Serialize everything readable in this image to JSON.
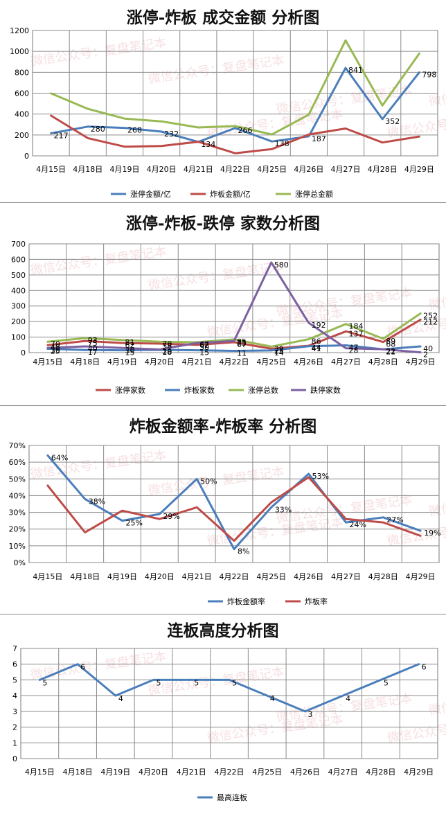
{
  "watermark": "微信公众号：复盘笔记本",
  "charts": [
    {
      "type": "line",
      "title": "涨停-炸板 成交金额 分析图",
      "categories": [
        "4月15日",
        "4月18日",
        "4月19日",
        "4月20日",
        "4月21日",
        "4月22日",
        "4月25日",
        "4月26日",
        "4月27日",
        "4月28日",
        "4月29日"
      ],
      "ylim": [
        0,
        1200
      ],
      "yticks": [
        0,
        200,
        400,
        600,
        800,
        1000,
        1200
      ],
      "ytick_labels": [
        "0",
        "200",
        "400",
        "600",
        "800",
        "1000",
        "1200"
      ],
      "grid": true,
      "legend_position": "bottom",
      "series": [
        {
          "name": "涨停金额/亿",
          "color": "#4a7ebb",
          "values": [
            217,
            280,
            268,
            232,
            134,
            266,
            138,
            187,
            841,
            352,
            798
          ],
          "labels": [
            "217",
            "280",
            "268",
            "232",
            "134",
            "266",
            "138",
            "187",
            "841",
            "352",
            "798"
          ]
        },
        {
          "name": "炸板金额/亿",
          "color": "#be4b48",
          "values": [
            385,
            170,
            88,
            95,
            135,
            25,
            65,
            205,
            262,
            128,
            185
          ]
        },
        {
          "name": "涨停总金额",
          "color": "#98b954",
          "values": [
            598,
            450,
            357,
            330,
            272,
            285,
            205,
            395,
            1105,
            482,
            980
          ]
        }
      ]
    },
    {
      "type": "line",
      "title": "涨停-炸板-跌停 家数分析图",
      "categories": [
        "4月15日",
        "4月18日",
        "4月19日",
        "4月20日",
        "4月21日",
        "4月22日",
        "4月25日",
        "4月26日",
        "4月27日",
        "4月28日",
        "4月29日"
      ],
      "ylim": [
        0,
        700
      ],
      "yticks": [
        0,
        100,
        200,
        300,
        400,
        500,
        600,
        700
      ],
      "ytick_labels": [
        "0",
        "100",
        "200",
        "300",
        "400",
        "500",
        "600",
        "700"
      ],
      "grid": true,
      "legend_position": "bottom",
      "series": [
        {
          "name": "涨停家数",
          "color": "#be4b48",
          "values": [
            48,
            75,
            62,
            58,
            50,
            67,
            25,
            44,
            137,
            68,
            212
          ],
          "labels": [
            "48",
            "75",
            "62",
            "58",
            "50",
            "67",
            "25",
            "44",
            "137",
            "68",
            "212"
          ]
        },
        {
          "name": "炸板家数",
          "color": "#4a7ebb",
          "values": [
            25,
            17,
            15,
            18,
            15,
            11,
            14,
            41,
            47,
            21,
            40
          ],
          "labels": [
            "25",
            "17",
            "15",
            "18",
            "15",
            "11",
            "14",
            "41",
            "47",
            "21",
            "40"
          ]
        },
        {
          "name": "涨停总数",
          "color": "#98b954",
          "values": [
            70,
            93,
            81,
            70,
            67,
            85,
            39,
            86,
            184,
            89,
            252
          ],
          "labels": [
            "70",
            "93",
            "81",
            "70",
            "67",
            "85",
            "39",
            "86",
            "184",
            "89",
            "252"
          ]
        },
        {
          "name": "跌停家数",
          "color": "#7d60a0",
          "values": [
            30,
            40,
            30,
            20,
            62,
            75,
            580,
            192,
            28,
            22,
            2
          ],
          "labels": [
            "30",
            "40",
            "30",
            "20",
            "62",
            "75",
            "580",
            "192",
            "28",
            "22",
            "2"
          ]
        }
      ]
    },
    {
      "type": "line",
      "title": "炸板金额率-炸板率 分析图",
      "categories": [
        "4月15日",
        "4月18日",
        "4月19日",
        "4月20日",
        "4月21日",
        "4月22日",
        "4月25日",
        "4月26日",
        "4月27日",
        "4月28日",
        "4月29日"
      ],
      "ylim": [
        0,
        70
      ],
      "yticks": [
        0,
        10,
        20,
        30,
        40,
        50,
        60,
        70
      ],
      "ytick_labels": [
        "0%",
        "10%",
        "20%",
        "30%",
        "40%",
        "50%",
        "60%",
        "70%"
      ],
      "grid": true,
      "legend_position": "bottom",
      "series": [
        {
          "name": "炸板金额率",
          "color": "#4a7ebb",
          "values": [
            64,
            38,
            25,
            29,
            50,
            8,
            33,
            53,
            24,
            27,
            19
          ],
          "labels": [
            "64%",
            "38%",
            "25%",
            "29%",
            "50%",
            "8%",
            "33%",
            "53%",
            "24%",
            "27%",
            "19%"
          ]
        },
        {
          "name": "炸板率",
          "color": "#be4b48",
          "values": [
            46,
            18,
            31,
            26,
            33,
            13,
            36,
            51,
            26,
            24,
            16
          ]
        }
      ]
    },
    {
      "type": "line",
      "title": "连板高度分析图",
      "categories": [
        "4月15日",
        "4月18日",
        "4月19日",
        "4月20日",
        "4月21日",
        "4月22日",
        "4月25日",
        "4月26日",
        "4月27日",
        "4月28日",
        "4月29日"
      ],
      "ylim": [
        0,
        7
      ],
      "yticks": [
        0,
        1,
        2,
        3,
        4,
        5,
        6,
        7
      ],
      "ytick_labels": [
        "0",
        "1",
        "2",
        "3",
        "4",
        "5",
        "6",
        "7"
      ],
      "grid": true,
      "legend_position": "bottom",
      "series": [
        {
          "name": "最高连板",
          "color": "#4a7ebb",
          "values": [
            5,
            6,
            4,
            5,
            5,
            5,
            4,
            3,
            4,
            5,
            6
          ],
          "labels": [
            "5",
            "6",
            "4",
            "5",
            "5",
            "5",
            "4",
            "3",
            "4",
            "5",
            "6"
          ]
        }
      ]
    }
  ]
}
